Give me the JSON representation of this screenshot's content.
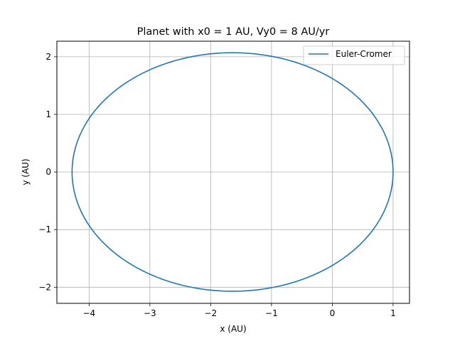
{
  "chart_data": {
    "type": "line",
    "title": "Planet with x0 = 1 AU, Vy0 = 8 AU/yr",
    "xlabel": "x (AU)",
    "ylabel": "y (AU)",
    "xlim": [
      -4.53,
      1.27
    ],
    "ylim": [
      -2.28,
      2.27
    ],
    "xticks": [
      -4,
      -3,
      -2,
      -1,
      0,
      1
    ],
    "xtick_labels": [
      "−4",
      "−3",
      "−2",
      "−1",
      "0",
      "1"
    ],
    "yticks": [
      -2,
      -1,
      0,
      1,
      2
    ],
    "ytick_labels": [
      "−2",
      "−1",
      "0",
      "1",
      "2"
    ],
    "grid": true,
    "legend_position": "upper right",
    "series": [
      {
        "name": "Euler-Cromer",
        "color": "#1f77b4",
        "shape": "ellipse",
        "center": [
          -1.64,
          0
        ],
        "semi_axis_x": 2.64,
        "semi_axis_y": 2.07
      }
    ]
  }
}
